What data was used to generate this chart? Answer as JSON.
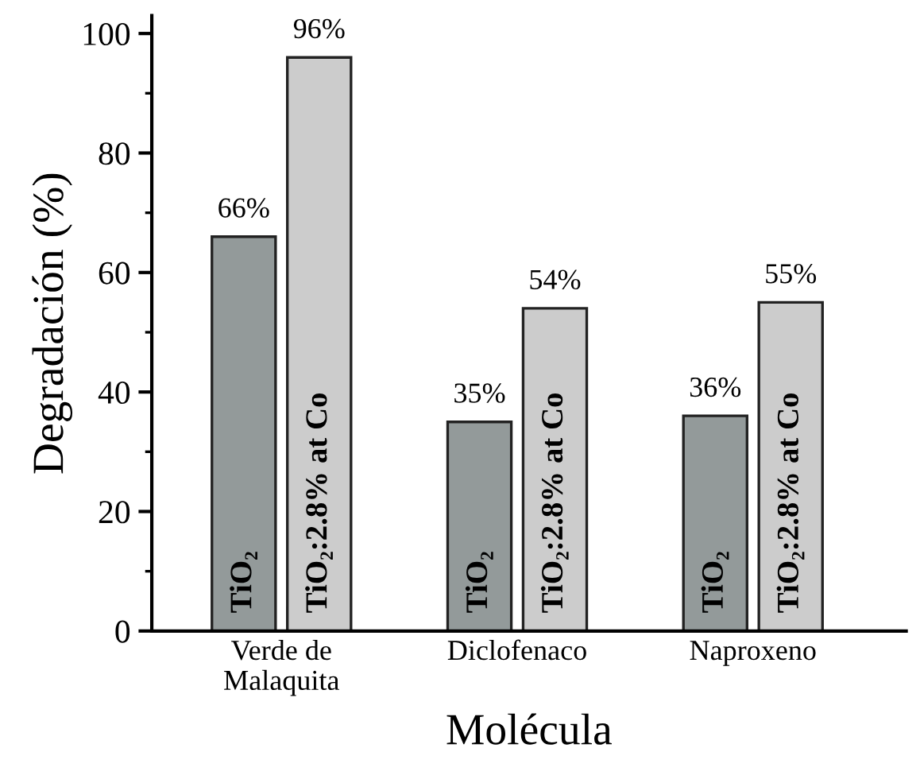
{
  "chart_data": {
    "type": "bar",
    "xlabel": "Molécula",
    "ylabel": "Degradación (%)",
    "categories": [
      "Verde de\nMalaquita",
      "Diclofenaco",
      "Naproxeno"
    ],
    "series": [
      {
        "name": "TiO₂",
        "color": "#939a9a",
        "values": [
          66,
          35,
          36
        ],
        "value_labels": [
          "66%",
          "35%",
          "36%"
        ]
      },
      {
        "name": "TiO₂:2.8% at Co",
        "color": "#cccccc",
        "values": [
          96,
          54,
          55
        ],
        "value_labels": [
          "96%",
          "54%",
          "55%"
        ]
      }
    ],
    "ylim": [
      0,
      103
    ],
    "yticks": [
      0,
      20,
      40,
      60,
      80,
      100
    ],
    "grid": false,
    "legend": false
  }
}
